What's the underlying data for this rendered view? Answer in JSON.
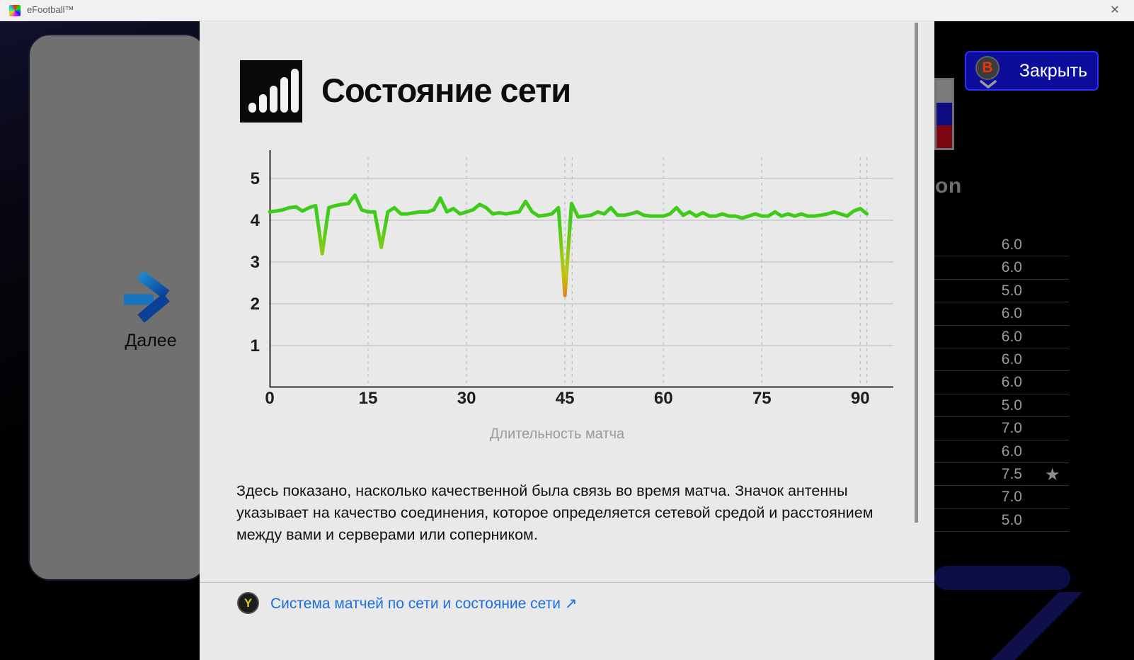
{
  "titlebar": {
    "app_title": "eFootball™",
    "close_glyph": "✕"
  },
  "left_panel": {
    "next_label": "Далее"
  },
  "dialog": {
    "title": "Состояние сети",
    "description": "Здесь показано, насколько качественной была связь во время матча. Значок антенны указывает на качество соединения, которое определяется сетевой средой и расстоянием между вами и серверами или соперником.",
    "footer_button_glyph": "Y",
    "footer_link": "Система матчей по сети и состояние сети ↗"
  },
  "close_button": {
    "label": "Закрыть",
    "glyph": "B"
  },
  "background": {
    "partial_header": "on",
    "star_glyph": "★",
    "ratings": [
      {
        "value": "6.0"
      },
      {
        "value": "6.0"
      },
      {
        "value": "5.0"
      },
      {
        "value": "6.0"
      },
      {
        "value": "6.0"
      },
      {
        "value": "6.0"
      },
      {
        "value": "6.0"
      },
      {
        "value": "5.0"
      },
      {
        "value": "7.0"
      },
      {
        "value": "6.0"
      },
      {
        "value": "7.5",
        "starred": true
      },
      {
        "value": "7.0"
      },
      {
        "value": "5.0"
      }
    ]
  },
  "chart_data": {
    "type": "line",
    "title": "Состояние сети",
    "xlabel": "Длительность матча",
    "ylabel": "",
    "xlim": [
      0,
      97
    ],
    "ylim": [
      0,
      5.6
    ],
    "grid": true,
    "xticks": [
      0,
      15,
      30,
      45,
      60,
      75,
      90
    ],
    "yticks": [
      1,
      2,
      3,
      4,
      5
    ],
    "dashed_x": [
      15,
      30,
      45,
      46.1,
      60,
      75,
      90,
      91
    ],
    "line_color": "#3ecb19",
    "dip_color_mid": "#c2c513",
    "dip_color_low": "#e2830d",
    "x": [
      0,
      1,
      2,
      3,
      4,
      5,
      6,
      7,
      8,
      9,
      10,
      11,
      12,
      13,
      14,
      15,
      16,
      17,
      18,
      19,
      20,
      21,
      22,
      23,
      24,
      25,
      26,
      27,
      28,
      29,
      30,
      31,
      32,
      33,
      34,
      35,
      36,
      37,
      38,
      39,
      40,
      41,
      42,
      43,
      44,
      45,
      46,
      47,
      48,
      49,
      50,
      51,
      52,
      53,
      54,
      55,
      56,
      57,
      58,
      59,
      60,
      61,
      62,
      63,
      64,
      65,
      66,
      67,
      68,
      69,
      70,
      71,
      72,
      73,
      74,
      75,
      76,
      77,
      78,
      79,
      80,
      81,
      82,
      83,
      84,
      85,
      86,
      87,
      88,
      89,
      90,
      91
    ],
    "values": [
      4.2,
      4.22,
      4.25,
      4.3,
      4.32,
      4.22,
      4.3,
      4.35,
      3.2,
      4.3,
      4.35,
      4.38,
      4.4,
      4.6,
      4.25,
      4.2,
      4.2,
      3.35,
      4.2,
      4.3,
      4.15,
      4.15,
      4.18,
      4.2,
      4.2,
      4.25,
      4.53,
      4.2,
      4.28,
      4.15,
      4.2,
      4.25,
      4.38,
      4.3,
      4.15,
      4.18,
      4.15,
      4.18,
      4.2,
      4.45,
      4.2,
      4.1,
      4.12,
      4.15,
      4.3,
      2.2,
      4.4,
      4.08,
      4.1,
      4.12,
      4.2,
      4.15,
      4.3,
      4.12,
      4.12,
      4.15,
      4.2,
      4.12,
      4.1,
      4.1,
      4.1,
      4.15,
      4.3,
      4.12,
      4.2,
      4.1,
      4.18,
      4.1,
      4.1,
      4.15,
      4.1,
      4.1,
      4.05,
      4.1,
      4.15,
      4.1,
      4.1,
      4.2,
      4.1,
      4.15,
      4.1,
      4.15,
      4.1,
      4.1,
      4.12,
      4.15,
      4.2,
      4.15,
      4.1,
      4.22,
      4.28,
      4.15
    ]
  }
}
